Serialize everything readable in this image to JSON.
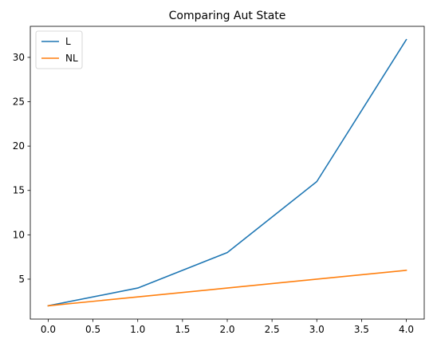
{
  "chart_data": {
    "type": "line",
    "title": "Comparing Aut State",
    "xlabel": "",
    "ylabel": "",
    "x": [
      0,
      1,
      2,
      3,
      4
    ],
    "xlim": [
      -0.2,
      4.2
    ],
    "ylim": [
      0.5,
      33.5
    ],
    "xticks": [
      0.0,
      0.5,
      1.0,
      1.5,
      2.0,
      2.5,
      3.0,
      3.5,
      4.0
    ],
    "xtick_labels": [
      "0.0",
      "0.5",
      "1.0",
      "1.5",
      "2.0",
      "2.5",
      "3.0",
      "3.5",
      "4.0"
    ],
    "yticks": [
      5,
      10,
      15,
      20,
      25,
      30
    ],
    "ytick_labels": [
      "5",
      "10",
      "15",
      "20",
      "25",
      "30"
    ],
    "grid": false,
    "legend_position": "top-left",
    "series": [
      {
        "name": "L",
        "values": [
          2,
          4,
          8,
          16,
          32
        ],
        "color": "#1f77b4"
      },
      {
        "name": "NL",
        "values": [
          2,
          3,
          4,
          5,
          6
        ],
        "color": "#ff7f0e"
      }
    ]
  }
}
